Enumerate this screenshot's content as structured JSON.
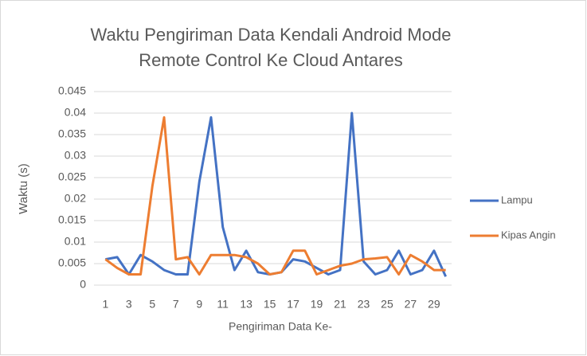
{
  "chart_data": {
    "type": "line",
    "title": "Waktu Pengiriman Data Kendali Android Mode Remote Control Ke Cloud Antares",
    "x_label": "Pengiriman Data Ke-",
    "y_label": "Waktu (s)",
    "categories": [
      1,
      null,
      3,
      null,
      5,
      null,
      7,
      null,
      9,
      null,
      11,
      null,
      13,
      null,
      15,
      null,
      17,
      null,
      19,
      null,
      21,
      null,
      23,
      null,
      25,
      null,
      27,
      null,
      29,
      null
    ],
    "series": [
      {
        "name": "Lampu",
        "color": "#4472c4",
        "values": [
          0.006,
          0.0065,
          0.0025,
          0.007,
          0.0055,
          0.0035,
          0.0025,
          0.0025,
          0.024,
          0.039,
          0.0135,
          0.0035,
          0.008,
          0.003,
          0.0025,
          0.003,
          0.006,
          0.0055,
          0.004,
          0.0025,
          0.0035,
          0.04,
          0.0055,
          0.0025,
          0.0035,
          0.008,
          0.0025,
          0.0035,
          0.008,
          0.002
        ]
      },
      {
        "name": "Kipas Angin",
        "color": "#ed7d31",
        "values": [
          0.006,
          0.004,
          0.0025,
          0.0025,
          0.023,
          0.039,
          0.006,
          0.0065,
          0.0025,
          0.007,
          0.007,
          0.007,
          0.0065,
          0.005,
          0.0025,
          0.003,
          0.008,
          0.008,
          0.0025,
          0.0035,
          0.0045,
          0.005,
          0.006,
          0.0062,
          0.0065,
          0.0025,
          0.007,
          0.0055,
          0.0035,
          0.0035
        ]
      }
    ],
    "ylim": [
      0,
      0.045
    ],
    "yticks": [
      0,
      0.005,
      0.01,
      0.015,
      0.02,
      0.025,
      0.03,
      0.035,
      0.04,
      0.045
    ],
    "grid": true,
    "legend": "right"
  }
}
